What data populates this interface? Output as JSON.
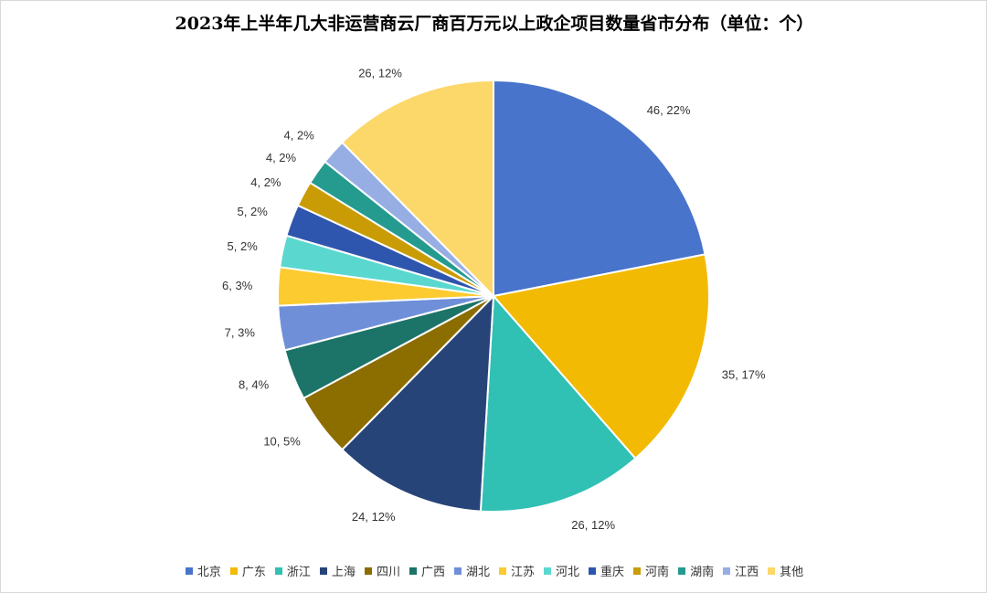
{
  "chart_data": {
    "type": "pie",
    "title": "2023年上半年几大非运营商云厂商百万元以上政企项目数量省市分布（单位：个）",
    "legend_position": "bottom",
    "slices": [
      {
        "name": "北京",
        "value": 46,
        "label": "46, 22%",
        "color": "#4874CB"
      },
      {
        "name": "广东",
        "value": 35,
        "label": "35, 17%",
        "color": "#F2BA02"
      },
      {
        "name": "浙江",
        "value": 26,
        "label": "26, 12%",
        "color": "#30C0B4"
      },
      {
        "name": "上海",
        "value": 24,
        "label": "24, 12%",
        "color": "#264478"
      },
      {
        "name": "四川",
        "value": 10,
        "label": "10, 5%",
        "color": "#8C6D00"
      },
      {
        "name": "广西",
        "value": 8,
        "label": "8, 4%",
        "color": "#1C7368"
      },
      {
        "name": "湖北",
        "value": 7,
        "label": "7, 3%",
        "color": "#6F8FD9"
      },
      {
        "name": "江苏",
        "value": 6,
        "label": "6, 3%",
        "color": "#FBCB30"
      },
      {
        "name": "河北",
        "value": 5,
        "label": "5, 2%",
        "color": "#5AD8CF"
      },
      {
        "name": "重庆",
        "value": 5,
        "label": "5, 2%",
        "color": "#2F56AE"
      },
      {
        "name": "河南",
        "value": 4,
        "label": "4, 2%",
        "color": "#C99C05"
      },
      {
        "name": "湖南",
        "value": 4,
        "label": "4, 2%",
        "color": "#259B90"
      },
      {
        "name": "江西",
        "value": 4,
        "label": "4, 2%",
        "color": "#97AEE4"
      },
      {
        "name": "其他",
        "value": 26,
        "label": "26, 12%",
        "color": "#FCD86A"
      }
    ]
  }
}
